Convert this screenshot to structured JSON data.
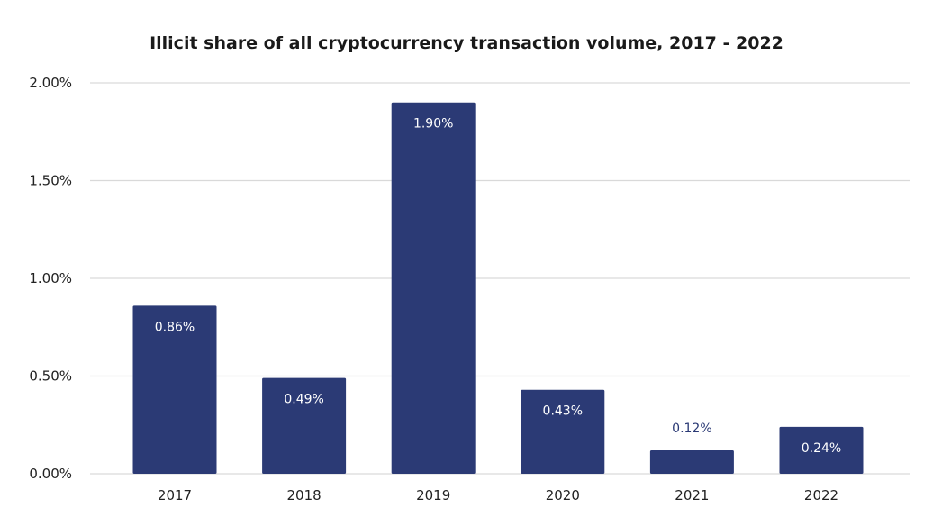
{
  "chart_data": {
    "type": "bar",
    "title": "Illicit share of all cryptocurrency transaction volume, 2017 - 2022",
    "categories": [
      "2017",
      "2018",
      "2019",
      "2020",
      "2021",
      "2022"
    ],
    "values": [
      0.86,
      0.49,
      1.9,
      0.43,
      0.12,
      0.24
    ],
    "data_labels": [
      "0.86%",
      "0.49%",
      "1.90%",
      "0.43%",
      "0.12%",
      "0.24%"
    ],
    "y_ticks": [
      0.0,
      0.5,
      1.0,
      1.5,
      2.0
    ],
    "y_tick_labels": [
      "0.00%",
      "0.50%",
      "1.00%",
      "1.50%",
      "2.00%"
    ],
    "xlabel": "",
    "ylabel": "",
    "ylim": [
      0,
      2.0
    ],
    "grid": true,
    "legend": "none",
    "bar_color": "#2b3a75",
    "inside_label_color": "#ffffff",
    "outside_label_color": "#2b3a75"
  }
}
